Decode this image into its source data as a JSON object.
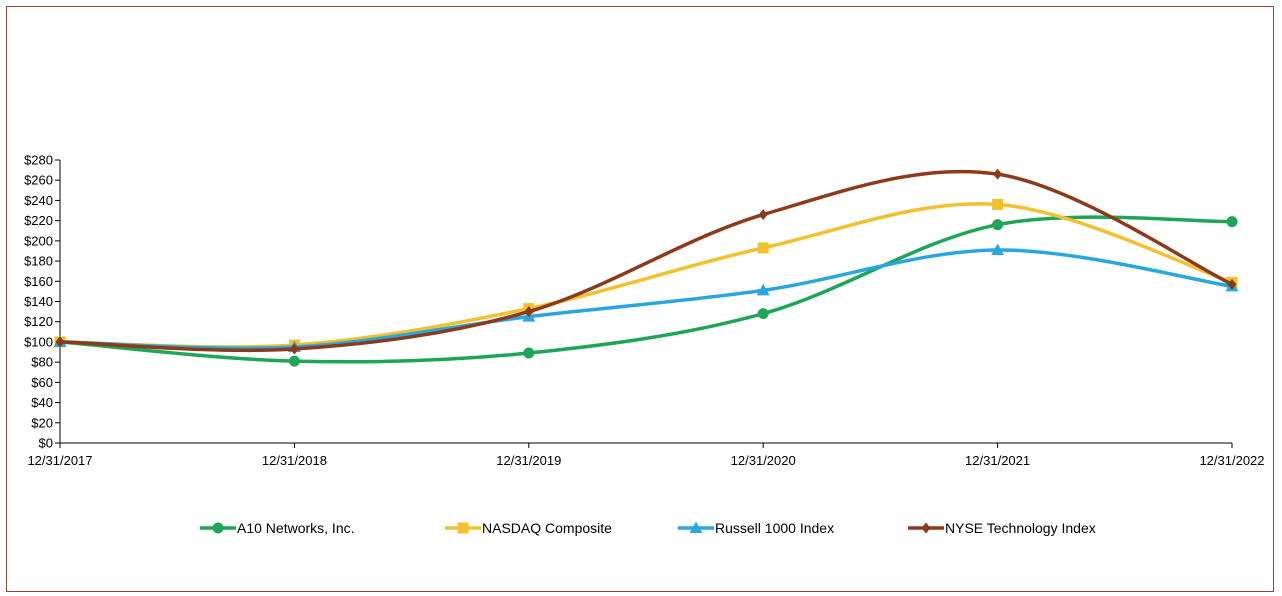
{
  "chart_data": {
    "type": "line",
    "title": "",
    "xlabel": "",
    "ylabel": "",
    "categories": [
      "12/31/2017",
      "12/31/2018",
      "12/31/2019",
      "12/31/2020",
      "12/31/2021",
      "12/31/2022"
    ],
    "ylim": [
      0,
      280
    ],
    "y_tick_step": 20,
    "y_tick_prefix": "$",
    "grid": false,
    "legend_position": "bottom",
    "smooth": true,
    "series": [
      {
        "name": "A10 Networks, Inc.",
        "color": "#1fa557",
        "marker": "circle",
        "values": [
          100,
          81,
          89,
          128,
          216,
          219
        ]
      },
      {
        "name": "NASDAQ Composite",
        "color": "#f2c12e",
        "marker": "square",
        "values": [
          100,
          97,
          133,
          193,
          236,
          159
        ]
      },
      {
        "name": "Russell 1000 Index",
        "color": "#2aa6df",
        "marker": "triangle",
        "values": [
          100,
          95,
          125,
          151,
          191,
          155
        ]
      },
      {
        "name": "NYSE Technology Index",
        "color": "#8b3a1a",
        "marker": "diamond",
        "values": [
          100,
          93,
          130,
          226,
          266,
          157
        ]
      }
    ]
  }
}
